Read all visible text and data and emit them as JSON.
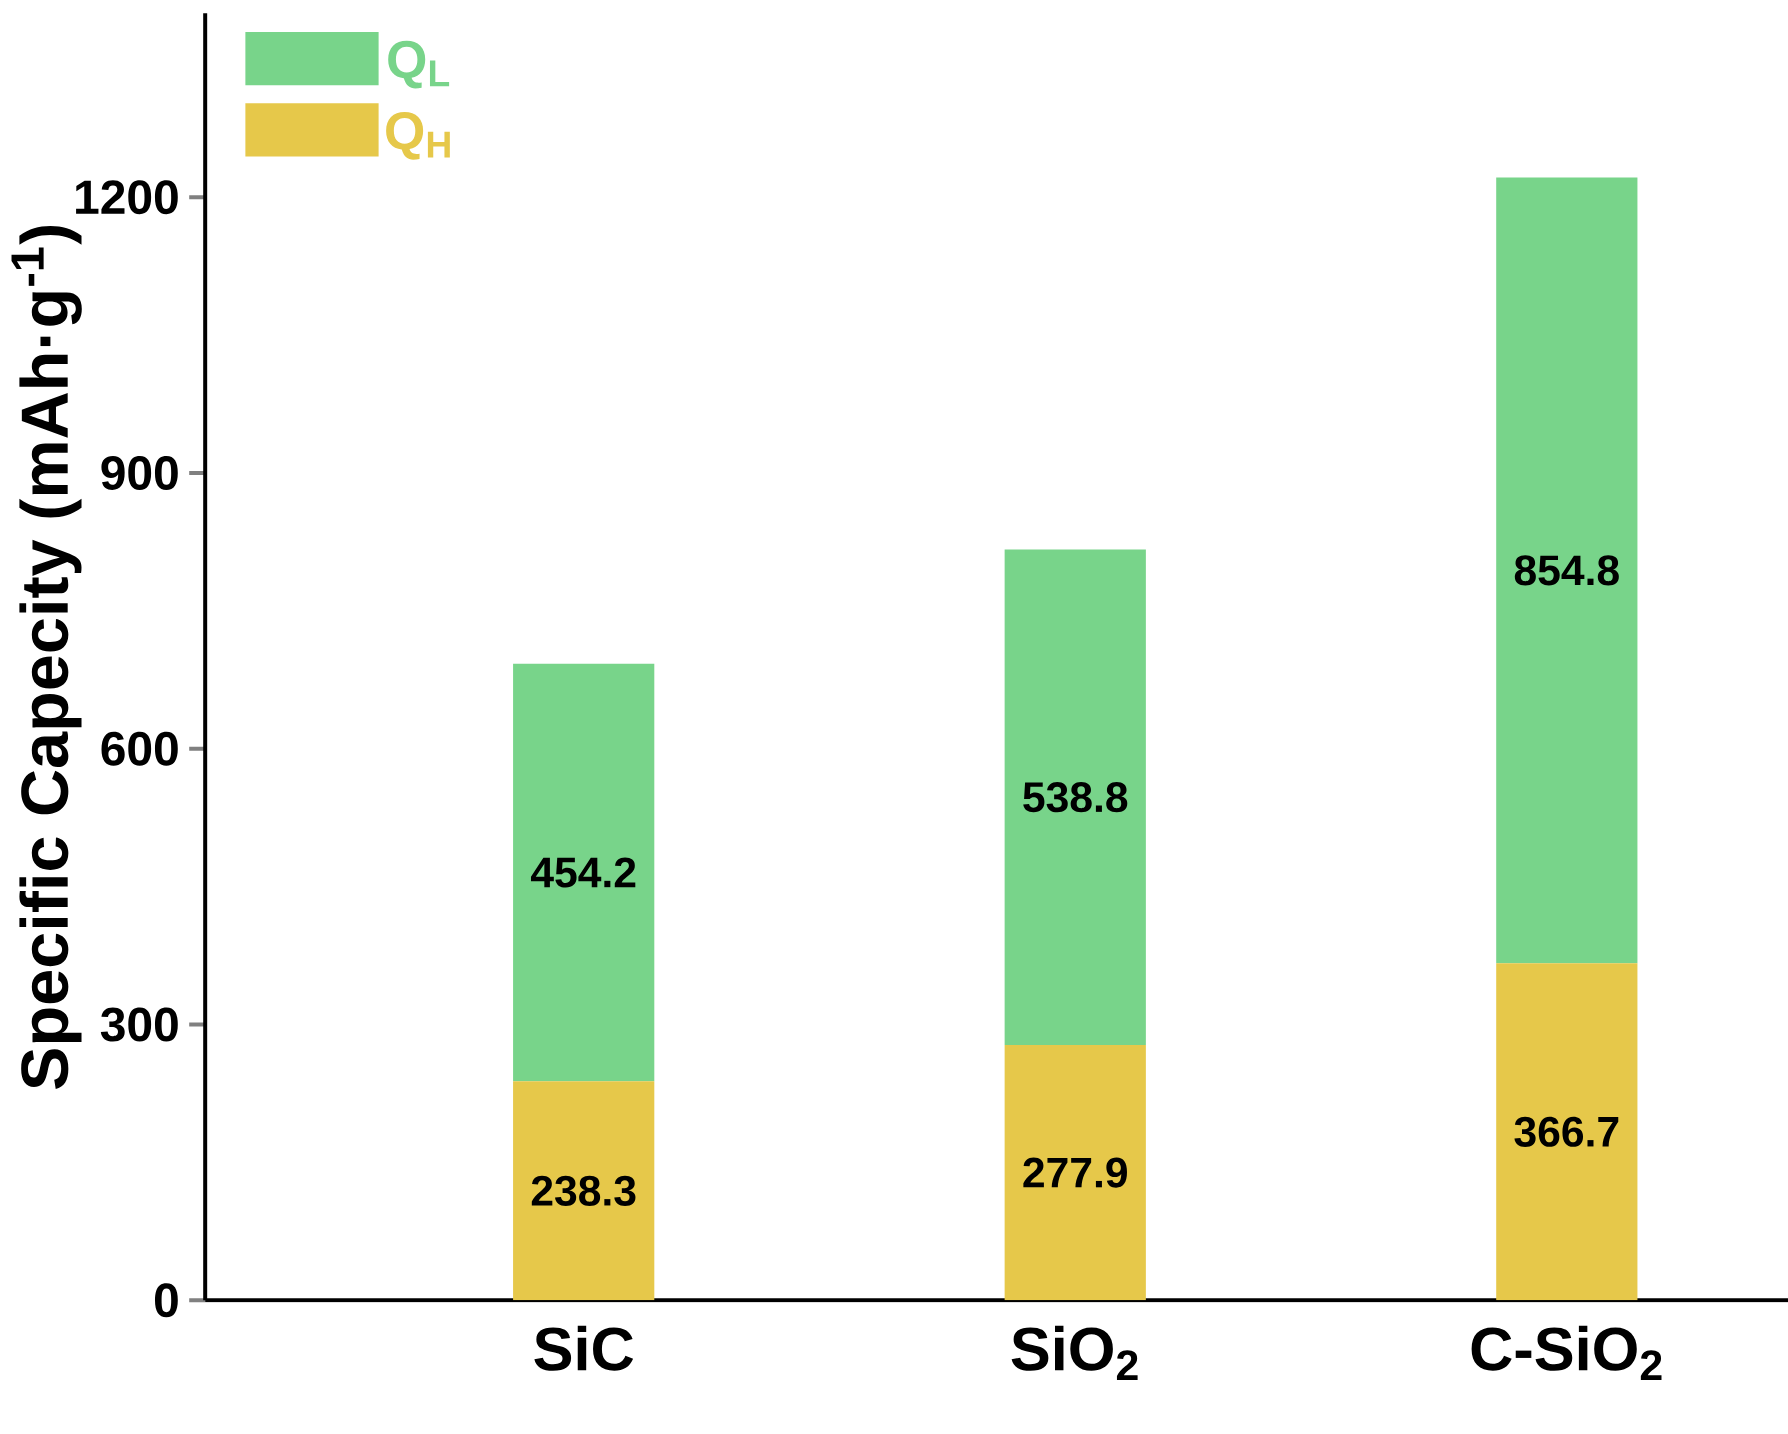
{
  "chart_data": {
    "type": "bar",
    "stacked": true,
    "ylabel": "Specific Capecity (mAh·g$^{-1}$)",
    "categories": [
      "SiC",
      "SiO$_{2}$",
      "C-SiO$_{2}$"
    ],
    "series": [
      {
        "name": "Q$_{H}$",
        "color": "#e6c84a",
        "values": [
          238.3,
          277.9,
          366.7
        ]
      },
      {
        "name": "Q$_{L}$",
        "color": "#78d48a",
        "values": [
          454.2,
          538.8,
          854.8
        ]
      }
    ],
    "ylim": [
      0,
      1400
    ],
    "yticks": [
      0,
      300,
      600,
      900,
      1200
    ],
    "data_labels": true,
    "legend": "top left",
    "grid": false
  }
}
